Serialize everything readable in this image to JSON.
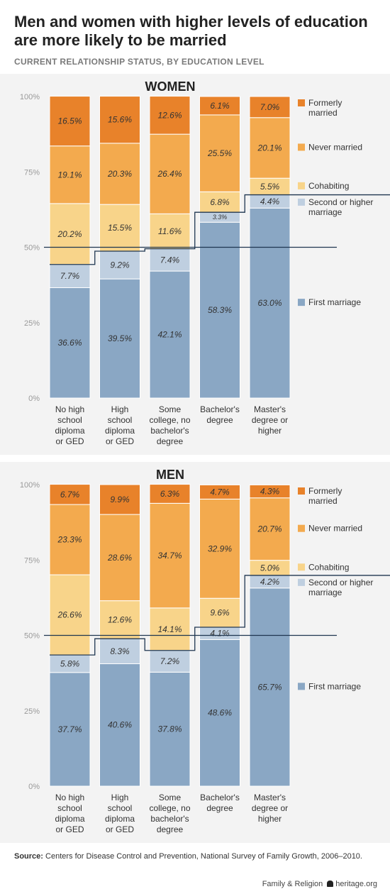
{
  "title": "Men and women with higher levels of education are more likely to be married",
  "subtitle": "CURRENT RELATIONSHIP STATUS, BY EDUCATION LEVEL",
  "source_label": "Source:",
  "source_text": "Centers for Disease Control and Prevention, National Survey of Family Growth, 2006–2010.",
  "footer": {
    "left": "Family & Religion",
    "right": "heritage.org"
  },
  "colors": {
    "first_marriage": "#8aa7c4",
    "second_marriage": "#bfcfe0",
    "cohabiting": "#f8d48a",
    "never_married": "#f3aa4e",
    "formerly_married": "#e8822a",
    "line": "#1f3650"
  },
  "chart_data": [
    {
      "type": "bar",
      "stacked": true,
      "title": "WOMEN",
      "categories": [
        "No high school diploma or GED",
        "High school diploma or GED",
        "Some college, no bachelor's degree",
        "Bachelor's degree",
        "Master's degree or higher"
      ],
      "category_lines": [
        [
          "No high",
          "school",
          "diploma",
          "or GED"
        ],
        [
          "High",
          "school",
          "diploma",
          "or GED"
        ],
        [
          "Some",
          "college, no",
          "bachelor's",
          "degree"
        ],
        [
          "Bachelor's",
          "degree"
        ],
        [
          "Master's",
          "degree or",
          "higher"
        ]
      ],
      "y_ticks": [
        "0%",
        "25%",
        "50%",
        "75%",
        "100%"
      ],
      "ylim": [
        0,
        100
      ],
      "reference_line": 50,
      "series": [
        {
          "name": "First marriage",
          "key": "first_marriage",
          "values": [
            36.6,
            39.5,
            42.1,
            58.3,
            63.0
          ],
          "labels": [
            "36.6%",
            "39.5%",
            "42.1%",
            "58.3%",
            "63.0%"
          ]
        },
        {
          "name": "Second or higher marriage",
          "key": "second_marriage",
          "values": [
            7.7,
            9.2,
            7.4,
            3.3,
            4.4
          ],
          "labels": [
            "7.7%",
            "9.2%",
            "7.4%",
            "3.3%",
            "4.4%"
          ]
        },
        {
          "name": "Cohabiting",
          "key": "cohabiting",
          "values": [
            20.2,
            15.5,
            11.6,
            6.8,
            5.5
          ],
          "labels": [
            "20.2%",
            "15.5%",
            "11.6%",
            "6.8%",
            "5.5%"
          ]
        },
        {
          "name": "Never married",
          "key": "never_married",
          "values": [
            19.1,
            20.3,
            26.4,
            25.5,
            20.1
          ],
          "labels": [
            "19.1%",
            "20.3%",
            "26.4%",
            "25.5%",
            "20.1%"
          ]
        },
        {
          "name": "Formerly married",
          "key": "formerly_married",
          "values": [
            16.5,
            15.6,
            12.6,
            6.1,
            7.0
          ],
          "labels": [
            "16.5%",
            "15.6%",
            "12.6%",
            "6.1%",
            "7.0%"
          ]
        }
      ],
      "legend": [
        {
          "key": "formerly_married",
          "lines": [
            "Formerly",
            "married"
          ]
        },
        {
          "key": "never_married",
          "lines": [
            "Never married"
          ]
        },
        {
          "key": "cohabiting",
          "lines": [
            "Cohabiting"
          ]
        },
        {
          "key": "second_marriage",
          "lines": [
            "Second or higher",
            "marriage"
          ]
        },
        {
          "key": "first_marriage",
          "lines": [
            "First marriage"
          ]
        }
      ]
    },
    {
      "type": "bar",
      "stacked": true,
      "title": "MEN",
      "categories": [
        "No high school diploma or GED",
        "High school diploma or GED",
        "Some college, no bachelor's degree",
        "Bachelor's degree",
        "Master's degree or higher"
      ],
      "category_lines": [
        [
          "No high",
          "school",
          "diploma",
          "or GED"
        ],
        [
          "High",
          "school",
          "diploma",
          "or GED"
        ],
        [
          "Some",
          "college, no",
          "bachelor's",
          "degree"
        ],
        [
          "Bachelor's",
          "degree"
        ],
        [
          "Master's",
          "degree or",
          "higher"
        ]
      ],
      "y_ticks": [
        "0%",
        "25%",
        "50%",
        "75%",
        "100%"
      ],
      "ylim": [
        0,
        100
      ],
      "reference_line": 50,
      "series": [
        {
          "name": "First marriage",
          "key": "first_marriage",
          "values": [
            37.7,
            40.6,
            37.8,
            48.6,
            65.7
          ],
          "labels": [
            "37.7%",
            "40.6%",
            "37.8%",
            "48.6%",
            "65.7%"
          ]
        },
        {
          "name": "Second or higher marriage",
          "key": "second_marriage",
          "values": [
            5.8,
            8.3,
            7.2,
            4.1,
            4.2
          ],
          "labels": [
            "5.8%",
            "8.3%",
            "7.2%",
            "4.1%",
            "4.2%"
          ]
        },
        {
          "name": "Cohabiting",
          "key": "cohabiting",
          "values": [
            26.6,
            12.6,
            14.1,
            9.6,
            5.0
          ],
          "labels": [
            "26.6%",
            "12.6%",
            "14.1%",
            "9.6%",
            "5.0%"
          ]
        },
        {
          "name": "Never married",
          "key": "never_married",
          "values": [
            23.3,
            28.6,
            34.7,
            32.9,
            20.7
          ],
          "labels": [
            "23.3%",
            "28.6%",
            "34.7%",
            "32.9%",
            "20.7%"
          ]
        },
        {
          "name": "Formerly married",
          "key": "formerly_married",
          "values": [
            6.7,
            9.9,
            6.3,
            4.7,
            4.3
          ],
          "labels": [
            "6.7%",
            "9.9%",
            "6.3%",
            "4.7%",
            "4.3%"
          ]
        }
      ],
      "legend": [
        {
          "key": "formerly_married",
          "lines": [
            "Formerly",
            "married"
          ]
        },
        {
          "key": "never_married",
          "lines": [
            "Never married"
          ]
        },
        {
          "key": "cohabiting",
          "lines": [
            "Cohabiting"
          ]
        },
        {
          "key": "second_marriage",
          "lines": [
            "Second or higher",
            "marriage"
          ]
        },
        {
          "key": "first_marriage",
          "lines": [
            "First marriage"
          ]
        }
      ]
    }
  ]
}
